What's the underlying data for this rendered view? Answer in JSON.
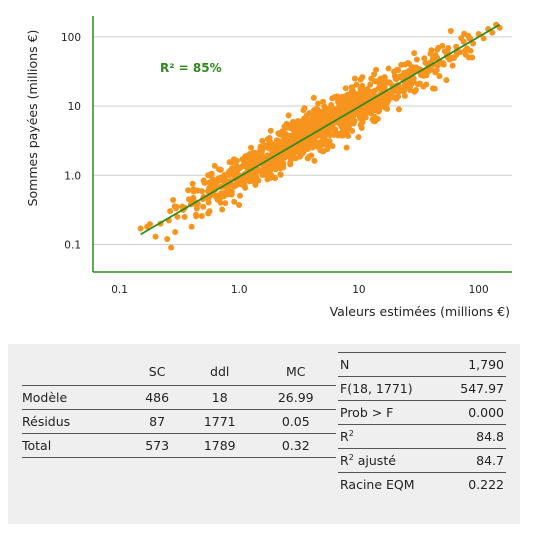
{
  "colors": {
    "points": "#f7941d",
    "fit_line": "#2e8b1e",
    "axis": "#2e8b1e",
    "grid": "#cfcfcf",
    "annotation": "#2e8b1e",
    "table_bg": "#efefef"
  },
  "chart_data": {
    "type": "scatter",
    "xscale": "log",
    "yscale": "log",
    "xlabel": "Valeurs estimées (millions €)",
    "ylabel": "Sommes payées (millions €)",
    "xlim": [
      0.06,
      190
    ],
    "ylim": [
      0.04,
      200
    ],
    "xticks": [
      {
        "v": 0.1,
        "label": "0.1"
      },
      {
        "v": 1,
        "label": "1.0"
      },
      {
        "v": 10,
        "label": "10"
      },
      {
        "v": 100,
        "label": "100"
      }
    ],
    "yticks": [
      {
        "v": 0.1,
        "label": "0.1"
      },
      {
        "v": 1,
        "label": "1.0"
      },
      {
        "v": 10,
        "label": "10"
      },
      {
        "v": 100,
        "label": "100"
      }
    ],
    "grid": "horizontal",
    "annotation": "R² = 85%",
    "fit_line": {
      "x": [
        0.15,
        150
      ],
      "y": [
        0.14,
        150
      ]
    },
    "points_summary": {
      "n": 1790,
      "x_range": [
        0.15,
        150
      ],
      "log_spread_sd": 0.222
    },
    "points": [
      [
        0.15,
        0.17
      ],
      [
        0.17,
        0.18
      ],
      [
        0.2,
        0.13
      ],
      [
        0.22,
        0.2
      ],
      [
        0.25,
        0.12
      ],
      [
        0.27,
        0.09
      ],
      [
        0.3,
        0.35
      ],
      [
        0.35,
        0.25
      ],
      [
        0.38,
        0.45
      ],
      [
        0.4,
        0.18
      ],
      [
        0.45,
        0.6
      ],
      [
        0.5,
        0.35
      ],
      [
        0.55,
        0.28
      ],
      [
        0.6,
        0.8
      ],
      [
        0.65,
        0.5
      ],
      [
        0.7,
        0.4
      ],
      [
        0.75,
        0.9
      ],
      [
        0.8,
        0.7
      ],
      [
        0.85,
        0.55
      ],
      [
        0.9,
        1.2
      ],
      [
        0.95,
        0.75
      ],
      [
        1.0,
        1.0
      ],
      [
        1.1,
        0.8
      ],
      [
        1.2,
        1.5
      ],
      [
        1.3,
        1.1
      ],
      [
        1.4,
        0.9
      ],
      [
        1.5,
        2.0
      ],
      [
        1.6,
        1.4
      ],
      [
        1.7,
        1.2
      ],
      [
        1.8,
        2.5
      ],
      [
        1.9,
        1.6
      ],
      [
        2.0,
        1.9
      ],
      [
        2.2,
        3.0
      ],
      [
        2.4,
        1.8
      ],
      [
        2.6,
        2.4
      ],
      [
        2.8,
        3.5
      ],
      [
        3.0,
        2.2
      ],
      [
        3.2,
        3.0
      ],
      [
        3.5,
        4.5
      ],
      [
        3.8,
        2.8
      ],
      [
        4.0,
        3.8
      ],
      [
        4.5,
        5.5
      ],
      [
        5.0,
        4.0
      ],
      [
        5.5,
        6.5
      ],
      [
        6.0,
        4.8
      ],
      [
        6.5,
        7.5
      ],
      [
        7.0,
        6.0
      ],
      [
        7.5,
        9.0
      ],
      [
        8.0,
        6.5
      ],
      [
        8.5,
        8.0
      ],
      [
        9.0,
        11.0
      ],
      [
        10,
        9.0
      ],
      [
        11,
        13
      ],
      [
        12,
        10
      ],
      [
        13,
        16
      ],
      [
        14,
        12
      ],
      [
        15,
        18
      ],
      [
        16,
        14
      ],
      [
        18,
        22
      ],
      [
        20,
        17
      ],
      [
        22,
        26
      ],
      [
        24,
        20
      ],
      [
        26,
        30
      ],
      [
        28,
        24
      ],
      [
        30,
        35
      ],
      [
        33,
        28
      ],
      [
        36,
        42
      ],
      [
        40,
        34
      ],
      [
        45,
        50
      ],
      [
        50,
        42
      ],
      [
        55,
        60
      ],
      [
        60,
        50
      ],
      [
        65,
        72
      ],
      [
        70,
        60
      ],
      [
        75,
        85
      ],
      [
        80,
        68
      ],
      [
        85,
        95
      ],
      [
        90,
        80
      ],
      [
        100,
        110
      ],
      [
        110,
        95
      ],
      [
        120,
        130
      ],
      [
        130,
        115
      ],
      [
        140,
        150
      ],
      [
        150,
        135
      ]
    ]
  },
  "anova": {
    "headers": [
      "",
      "SC",
      "ddl",
      "MC"
    ],
    "rows": [
      [
        "Modèle",
        "486",
        "18",
        "26.99"
      ],
      [
        "Résidus",
        "87",
        "1771",
        "0.05"
      ],
      [
        "Total",
        "573",
        "1789",
        "0.32"
      ]
    ]
  },
  "stats": {
    "rows": [
      {
        "label": "N",
        "value": "1,790"
      },
      {
        "label": "F(18, 1771)",
        "value": "547.97"
      },
      {
        "label": "Prob > F",
        "value": "0.000"
      },
      {
        "label": "R",
        "sup": "2",
        "value": "84.8"
      },
      {
        "label": "R",
        "sup": "2",
        "suffix": " ajusté",
        "value": "84.7"
      },
      {
        "label": "Racine EQM",
        "value": "0.222"
      }
    ]
  }
}
